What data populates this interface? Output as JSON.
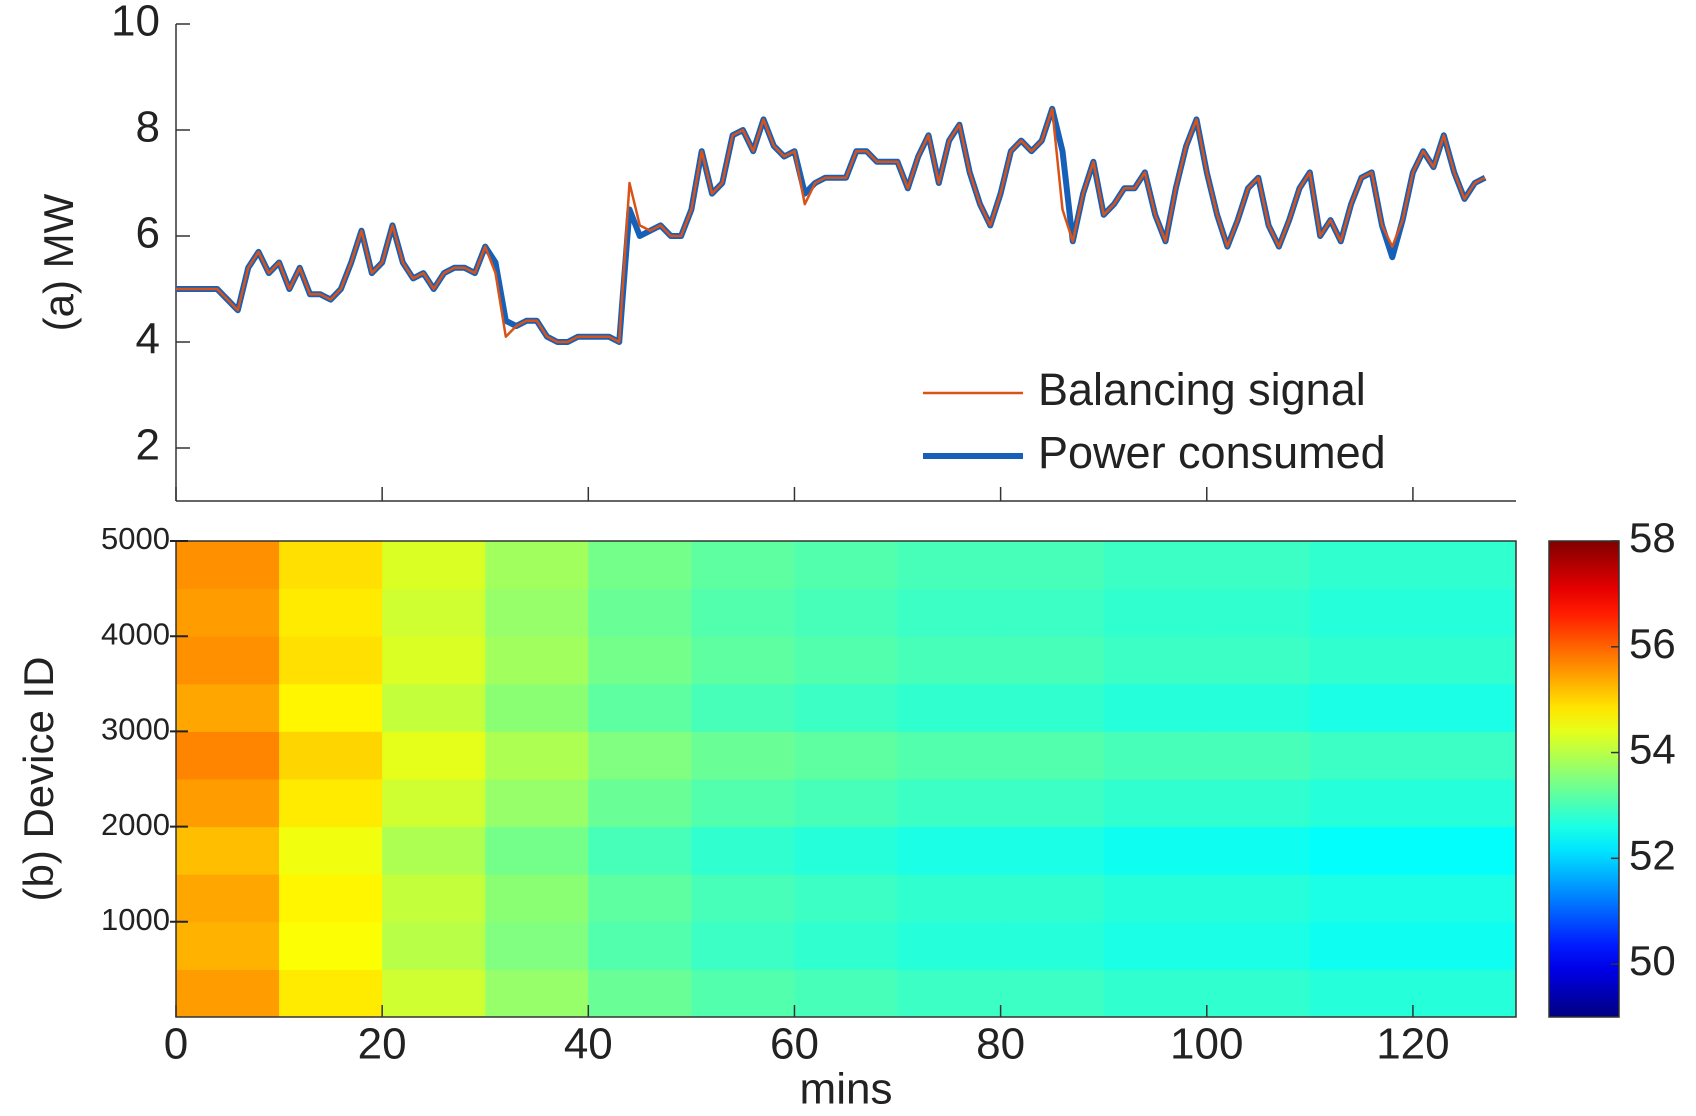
{
  "chart_data": [
    {
      "type": "line",
      "ylabel": "(a) MW",
      "xlim": [
        0,
        130
      ],
      "xticks": [
        0,
        20,
        40,
        60,
        80,
        100,
        120
      ],
      "ylim": [
        1,
        10
      ],
      "yticks": [
        2,
        4,
        6,
        8,
        10
      ],
      "legend": "lower right",
      "x": [
        0,
        1,
        2,
        3,
        4,
        5,
        6,
        7,
        8,
        9,
        10,
        11,
        12,
        13,
        14,
        15,
        16,
        17,
        18,
        19,
        20,
        21,
        22,
        23,
        24,
        25,
        26,
        27,
        28,
        29,
        30,
        31,
        32,
        33,
        34,
        35,
        36,
        37,
        38,
        39,
        40,
        41,
        42,
        43,
        44,
        45,
        46,
        47,
        48,
        49,
        50,
        51,
        52,
        53,
        54,
        55,
        56,
        57,
        58,
        59,
        60,
        61,
        62,
        63,
        64,
        65,
        66,
        67,
        68,
        69,
        70,
        71,
        72,
        73,
        74,
        75,
        76,
        77,
        78,
        79,
        80,
        81,
        82,
        83,
        84,
        85,
        86,
        87,
        88,
        89,
        90,
        91,
        92,
        93,
        94,
        95,
        96,
        97,
        98,
        99,
        100,
        101,
        102,
        103,
        104,
        105,
        106,
        107,
        108,
        109,
        110,
        111,
        112,
        113,
        114,
        115,
        116,
        117,
        118,
        119,
        120,
        121,
        122,
        123,
        124,
        125,
        126,
        127
      ],
      "series": [
        {
          "name": "Power consumed",
          "color": "#1660b8",
          "width": 6,
          "values": [
            5.0,
            5.0,
            5.0,
            5.0,
            5.0,
            4.8,
            4.6,
            5.4,
            5.7,
            5.3,
            5.5,
            5.0,
            5.4,
            4.9,
            4.9,
            4.8,
            5.0,
            5.5,
            6.1,
            5.3,
            5.5,
            6.2,
            5.5,
            5.2,
            5.3,
            5.0,
            5.3,
            5.4,
            5.4,
            5.3,
            5.8,
            5.5,
            4.4,
            4.3,
            4.4,
            4.4,
            4.1,
            4.0,
            4.0,
            4.1,
            4.1,
            4.1,
            4.1,
            4.0,
            6.5,
            6.0,
            6.1,
            6.2,
            6.0,
            6.0,
            6.5,
            7.6,
            6.8,
            7.0,
            7.9,
            8.0,
            7.6,
            8.2,
            7.7,
            7.5,
            7.6,
            6.8,
            7.0,
            7.1,
            7.1,
            7.1,
            7.6,
            7.6,
            7.4,
            7.4,
            7.4,
            6.9,
            7.5,
            7.9,
            7.0,
            7.8,
            8.1,
            7.2,
            6.6,
            6.2,
            6.8,
            7.6,
            7.8,
            7.6,
            7.8,
            8.4,
            7.6,
            5.9,
            6.8,
            7.4,
            6.4,
            6.6,
            6.9,
            6.9,
            7.2,
            6.4,
            5.9,
            6.9,
            7.7,
            8.2,
            7.2,
            6.4,
            5.8,
            6.3,
            6.9,
            7.1,
            6.2,
            5.8,
            6.3,
            6.9,
            7.2,
            6.0,
            6.3,
            5.9,
            6.6,
            7.1,
            7.2,
            6.2,
            5.6,
            6.3,
            7.2,
            7.6,
            7.3,
            7.9,
            7.2,
            6.7,
            7.0,
            7.1
          ]
        },
        {
          "name": "Balancing signal",
          "color": "#d95319",
          "width": 2.5,
          "values": [
            5.0,
            5.0,
            5.0,
            5.0,
            5.0,
            4.8,
            4.6,
            5.4,
            5.7,
            5.3,
            5.5,
            5.0,
            5.4,
            4.9,
            4.9,
            4.8,
            5.0,
            5.5,
            6.1,
            5.3,
            5.5,
            6.2,
            5.5,
            5.2,
            5.3,
            5.0,
            5.3,
            5.4,
            5.4,
            5.3,
            5.8,
            5.3,
            4.1,
            4.3,
            4.4,
            4.4,
            4.1,
            4.0,
            4.0,
            4.1,
            4.1,
            4.1,
            4.1,
            4.0,
            7.0,
            6.2,
            6.1,
            6.2,
            6.0,
            6.0,
            6.5,
            7.6,
            6.8,
            7.0,
            7.9,
            8.0,
            7.6,
            8.2,
            7.7,
            7.5,
            7.6,
            6.6,
            7.0,
            7.1,
            7.1,
            7.1,
            7.6,
            7.6,
            7.4,
            7.4,
            7.4,
            6.9,
            7.5,
            7.9,
            7.0,
            7.8,
            8.1,
            7.2,
            6.6,
            6.2,
            6.8,
            7.6,
            7.8,
            7.6,
            7.8,
            8.4,
            6.5,
            5.9,
            6.8,
            7.4,
            6.4,
            6.6,
            6.9,
            6.9,
            7.2,
            6.4,
            5.9,
            6.9,
            7.7,
            8.2,
            7.2,
            6.4,
            5.8,
            6.3,
            6.9,
            7.1,
            6.2,
            5.8,
            6.3,
            6.9,
            7.2,
            6.0,
            6.3,
            5.9,
            6.6,
            7.1,
            7.2,
            6.2,
            5.8,
            6.3,
            7.2,
            7.6,
            7.3,
            7.9,
            7.2,
            6.7,
            7.0,
            7.1
          ]
        }
      ]
    },
    {
      "type": "heatmap",
      "xlabel": "mins",
      "ylabel": "(b) Device ID",
      "colormap": "jet",
      "xlim": [
        0,
        130
      ],
      "xticks": [
        0,
        20,
        40,
        60,
        80,
        100,
        120
      ],
      "ylim": [
        0,
        5000
      ],
      "yticks": [
        1000,
        2000,
        3000,
        4000,
        5000
      ],
      "clim": [
        49,
        58
      ],
      "cticks": [
        50,
        52,
        54,
        56,
        58
      ],
      "xbins": [
        0,
        10,
        20,
        30,
        40,
        50,
        60,
        70,
        80,
        90,
        100,
        110,
        120,
        130
      ],
      "ybins": [
        0,
        500,
        1000,
        1500,
        2000,
        2500,
        3000,
        3500,
        4000,
        4500,
        5000
      ],
      "values": [
        [
          55.5,
          54.8,
          54.2,
          53.7,
          53.3,
          53.1,
          53.0,
          52.9,
          52.9,
          52.8,
          52.8,
          52.7,
          52.7
        ],
        [
          55.3,
          54.6,
          54.0,
          53.5,
          53.1,
          52.9,
          52.8,
          52.7,
          52.7,
          52.6,
          52.6,
          52.5,
          52.5
        ],
        [
          55.4,
          54.7,
          54.1,
          53.6,
          53.2,
          53.0,
          52.9,
          52.8,
          52.8,
          52.7,
          52.7,
          52.6,
          52.6
        ],
        [
          55.2,
          54.5,
          53.9,
          53.4,
          53.0,
          52.8,
          52.7,
          52.6,
          52.6,
          52.5,
          52.5,
          52.4,
          52.4
        ],
        [
          55.5,
          54.8,
          54.2,
          53.7,
          53.3,
          53.1,
          53.0,
          52.9,
          52.9,
          52.8,
          52.8,
          52.7,
          52.7
        ],
        [
          55.7,
          55.0,
          54.4,
          53.9,
          53.5,
          53.3,
          53.2,
          53.1,
          53.1,
          53.0,
          53.0,
          52.9,
          52.9
        ],
        [
          55.4,
          54.7,
          54.1,
          53.6,
          53.2,
          53.0,
          52.9,
          52.8,
          52.8,
          52.7,
          52.7,
          52.6,
          52.6
        ],
        [
          55.6,
          54.9,
          54.3,
          53.8,
          53.4,
          53.2,
          53.1,
          53.0,
          53.0,
          52.9,
          52.9,
          52.8,
          52.8
        ],
        [
          55.5,
          54.8,
          54.2,
          53.7,
          53.3,
          53.1,
          53.0,
          52.9,
          52.9,
          52.8,
          52.8,
          52.7,
          52.7
        ],
        [
          55.6,
          54.9,
          54.3,
          53.8,
          53.4,
          53.2,
          53.1,
          53.0,
          53.0,
          52.9,
          52.9,
          52.8,
          52.8
        ]
      ]
    }
  ]
}
